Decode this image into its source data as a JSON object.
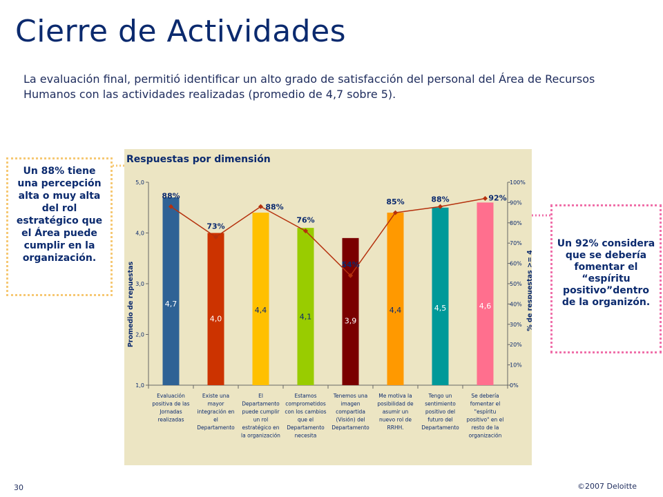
{
  "slide": {
    "title": "Cierre de Actividades",
    "subtitle": "La evaluación final, permitió identificar un alto grado de satisfacción del personal del Área de Recursos Humanos con las actividades realizadas (promedio de 4,7 sobre 5).",
    "page_number": "30",
    "copyright": "©2007 Deloitte"
  },
  "notes": {
    "left_text": "Un 88% tiene una percepción alta o muy alta del rol estratégico que el Área puede cumplir en la organización.",
    "right_text": "Un 92% considera que se debería fomentar el “espíritu positivo”dentro de la organizón."
  },
  "colors": {
    "chart_background": "#ece5c3",
    "line": "#b5310d",
    "note_left_border": "#f6c873",
    "note_right_border": "#ef6fa9",
    "title": "#0b2a6e"
  },
  "chart_data": {
    "type": "bar",
    "title": "Respuestas por dimensión",
    "ylabel": "Promedio de repuestas",
    "y2label": "% de respuestas >= 4",
    "ylim": [
      1.0,
      5.0
    ],
    "y2lim": [
      0,
      100
    ],
    "yticks": [
      "1,0",
      "2,0",
      "3,0",
      "4,0",
      "5,0"
    ],
    "y2ticks": [
      "0%",
      "10%",
      "20%",
      "30%",
      "40%",
      "50%",
      "60%",
      "70%",
      "80%",
      "90%",
      "100%"
    ],
    "grid": false,
    "categories": [
      [
        "Evaluación",
        "positiva de las",
        "Jornadas",
        "realizadas"
      ],
      [
        "Existe una",
        "mayor",
        "integración en",
        "el",
        "Departamento"
      ],
      [
        "El",
        "Departamento",
        "puede cumplir",
        "un rol",
        "estratégico en",
        "la organización"
      ],
      [
        "Estamos",
        "comprometidos",
        "con los cambios",
        "que el",
        "Departamento",
        "necesita"
      ],
      [
        "Tenemos una",
        "imagen",
        "compartida",
        "(Visión) del",
        "Departamento"
      ],
      [
        "Me motiva la",
        "posibilidad de",
        "asumir un",
        "nuevo rol de",
        "RRHH."
      ],
      [
        "Tengo un",
        "sentimiento",
        "positivo del",
        "futuro del",
        "Departamento"
      ],
      [
        "Se debería",
        "fomentar el",
        "\"espíritu",
        "positivo\" en el",
        "resto de la",
        "organización"
      ]
    ],
    "bar_values": [
      4.7,
      4.0,
      4.4,
      4.1,
      3.9,
      4.4,
      4.5,
      4.6
    ],
    "bar_labels": [
      "4,7",
      "4,0",
      "4,4",
      "4,1",
      "3,9",
      "4,4",
      "4,5",
      "4,6"
    ],
    "bar_colors": [
      "#2f6295",
      "#cc3300",
      "#ffc000",
      "#99cc00",
      "#7a0000",
      "#ff9900",
      "#009999",
      "#ff6f8e"
    ],
    "pct_values": [
      88,
      73,
      88,
      76,
      54,
      85,
      88,
      92
    ],
    "pct_labels": [
      "88%",
      "73%",
      "88%",
      "76%",
      "54%",
      "85%",
      "88%",
      "92%"
    ]
  }
}
